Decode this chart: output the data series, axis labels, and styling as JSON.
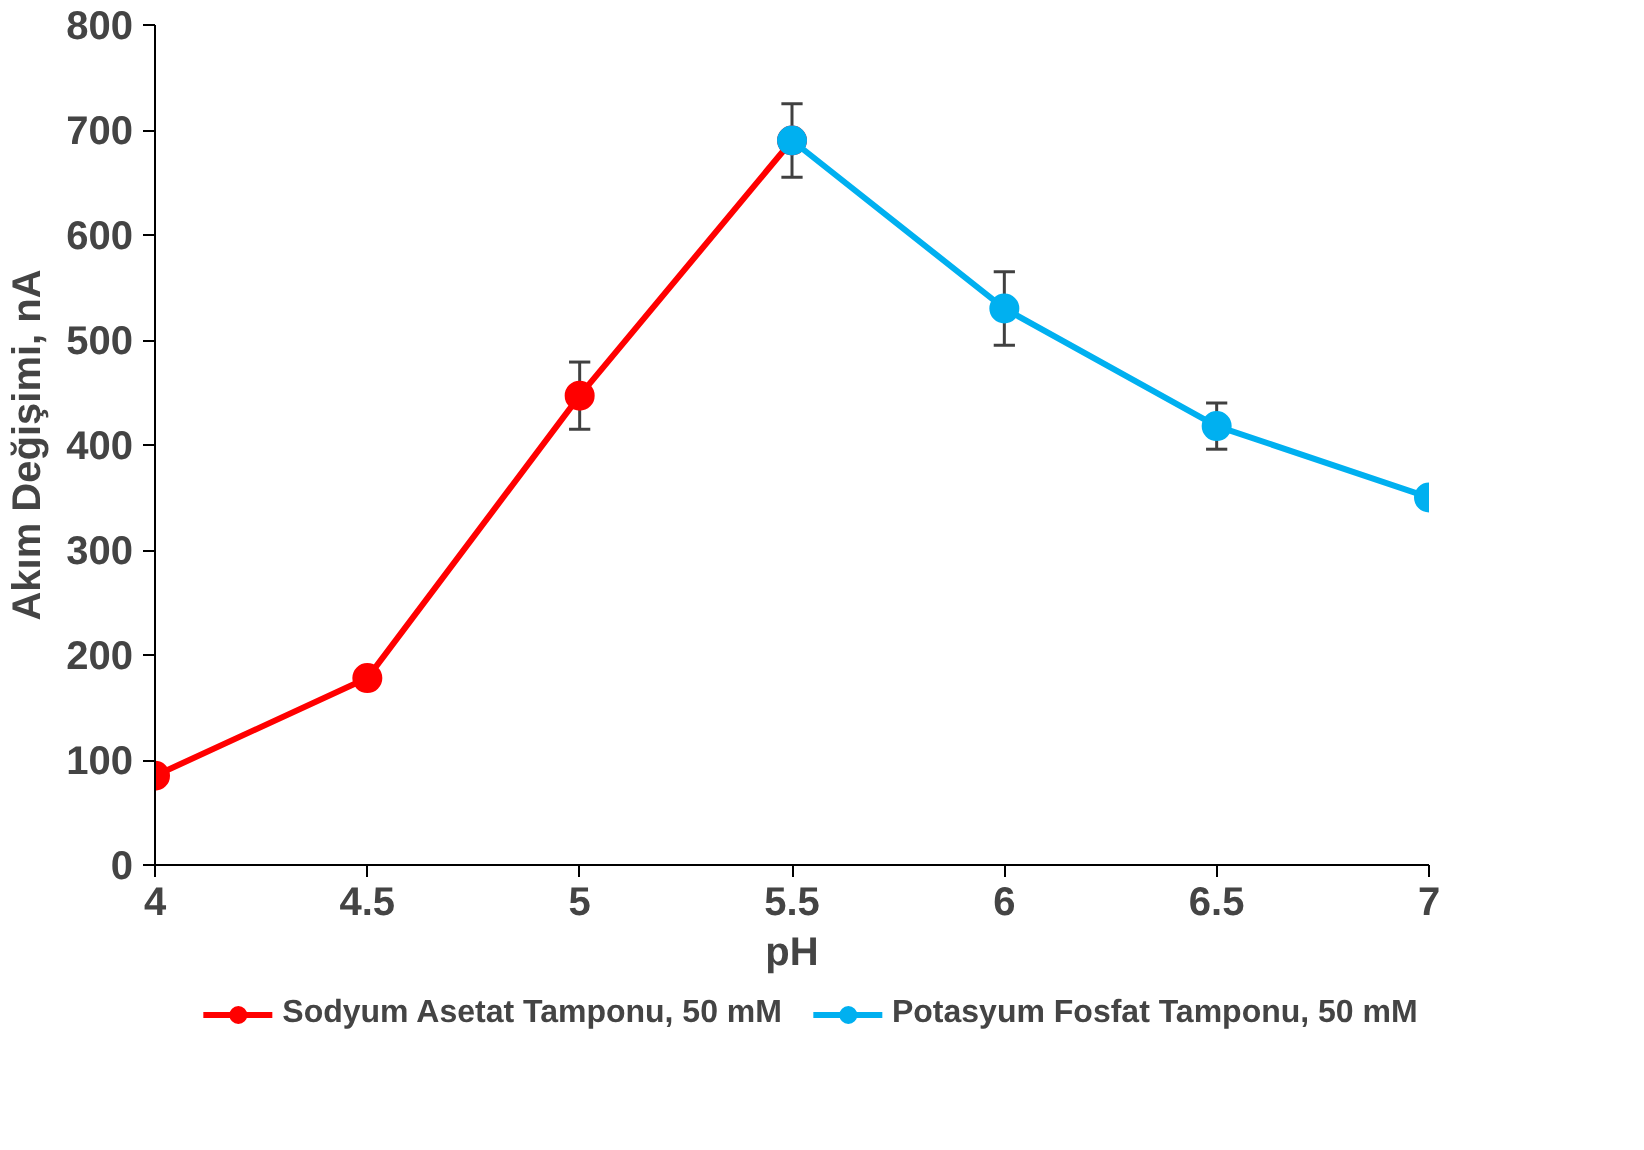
{
  "chart_data": {
    "type": "line",
    "xlabel": "pH",
    "ylabel": "Akım Değişimi, nA",
    "series": [
      {
        "name": "Sodyum Asetat Tamponu, 50 mM",
        "color": "#ff0000",
        "x": [
          4,
          4.5,
          5,
          5.5
        ],
        "values": [
          85,
          178,
          447,
          690
        ],
        "errors": [
          null,
          null,
          32,
          35
        ]
      },
      {
        "name": "Potasyum Fosfat Tamponu, 50 mM",
        "color": "#00b0f0",
        "x": [
          5.5,
          6,
          6.5,
          7
        ],
        "values": [
          690,
          530,
          418,
          350
        ],
        "errors": [
          null,
          35,
          22,
          null
        ]
      }
    ],
    "xlim": [
      4,
      7
    ],
    "xticks": [
      4,
      4.5,
      5,
      5.5,
      6,
      6.5,
      7
    ],
    "ylim": [
      0,
      800
    ],
    "yticks": [
      0,
      100,
      200,
      300,
      400,
      500,
      600,
      700,
      800
    ],
    "grid": false,
    "legend": "bottom",
    "marker": "circle",
    "line_style": "solid"
  }
}
